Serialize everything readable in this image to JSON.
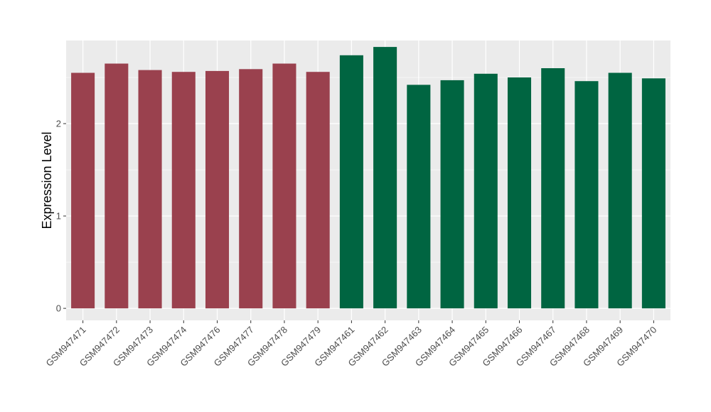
{
  "chart_data": {
    "type": "bar",
    "title": "",
    "xlabel": "",
    "ylabel": "Expression Level",
    "ylim": [
      -0.13,
      2.9
    ],
    "y_ticks": [
      0,
      1,
      2
    ],
    "grid": true,
    "legend": "none",
    "colors": {
      "group_a": "#9a414e",
      "group_b": "#006541",
      "panel": "#ebebeb",
      "grid": "#ffffff"
    },
    "categories": [
      "GSM947471",
      "GSM947472",
      "GSM947473",
      "GSM947474",
      "GSM947476",
      "GSM947477",
      "GSM947478",
      "GSM947479",
      "GSM947461",
      "GSM947462",
      "GSM947463",
      "GSM947464",
      "GSM947465",
      "GSM947466",
      "GSM947467",
      "GSM947468",
      "GSM947469",
      "GSM947470"
    ],
    "values": [
      2.55,
      2.65,
      2.58,
      2.56,
      2.57,
      2.59,
      2.65,
      2.56,
      2.74,
      2.83,
      2.42,
      2.47,
      2.54,
      2.5,
      2.6,
      2.46,
      2.55,
      2.49
    ],
    "groups": [
      "a",
      "a",
      "a",
      "a",
      "a",
      "a",
      "a",
      "a",
      "b",
      "b",
      "b",
      "b",
      "b",
      "b",
      "b",
      "b",
      "b",
      "b"
    ]
  }
}
